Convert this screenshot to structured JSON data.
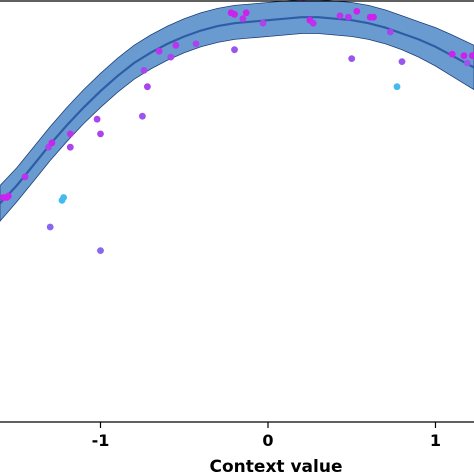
{
  "chart_data": {
    "type": "scatter",
    "title": "",
    "xlabel": "Context value",
    "ylabel": "",
    "xlim": [
      -1.6,
      1.23
    ],
    "ylim": [
      -1.6,
      1.25
    ],
    "grid": false,
    "legend": "none",
    "x_ticks": [
      {
        "value": -1,
        "label": "-1"
      },
      {
        "value": 0,
        "label": "0"
      },
      {
        "value": 1,
        "label": "1"
      }
    ],
    "fit": {
      "name": "",
      "color": "#2e5da6",
      "band_color": "#6a9bd0",
      "x": [
        -1.6,
        -1.5,
        -1.4,
        -1.3,
        -1.2,
        -1.1,
        -1.0,
        -0.9,
        -0.8,
        -0.7,
        -0.6,
        -0.5,
        -0.4,
        -0.3,
        -0.2,
        -0.1,
        0.0,
        0.1,
        0.2,
        0.3,
        0.4,
        0.5,
        0.6,
        0.7,
        0.8,
        0.9,
        1.0,
        1.1,
        1.23
      ],
      "mean": [
        -0.12,
        0.0,
        0.14,
        0.28,
        0.41,
        0.53,
        0.64,
        0.74,
        0.83,
        0.9,
        0.96,
        1.01,
        1.05,
        1.08,
        1.1,
        1.11,
        1.12,
        1.13,
        1.14,
        1.14,
        1.13,
        1.12,
        1.1,
        1.07,
        1.03,
        0.99,
        0.94,
        0.88,
        0.8
      ],
      "lower": [
        -0.24,
        -0.11,
        0.03,
        0.17,
        0.3,
        0.42,
        0.53,
        0.63,
        0.72,
        0.79,
        0.85,
        0.9,
        0.94,
        0.97,
        0.99,
        1.0,
        1.01,
        1.02,
        1.03,
        1.03,
        1.02,
        1.01,
        0.99,
        0.96,
        0.92,
        0.87,
        0.81,
        0.74,
        0.65
      ],
      "upper": [
        0.0,
        0.12,
        0.26,
        0.4,
        0.53,
        0.65,
        0.76,
        0.86,
        0.95,
        1.02,
        1.08,
        1.13,
        1.17,
        1.2,
        1.22,
        1.23,
        1.24,
        1.25,
        1.26,
        1.26,
        1.25,
        1.24,
        1.22,
        1.19,
        1.15,
        1.11,
        1.07,
        1.02,
        0.95
      ]
    },
    "points": [
      {
        "x": -1.58,
        "y": -0.08,
        "color": "#cc22ee"
      },
      {
        "x": -1.56,
        "y": -0.08,
        "color": "#cc22ee"
      },
      {
        "x": -1.55,
        "y": -0.07,
        "color": "#cc22ee"
      },
      {
        "x": -1.45,
        "y": 0.06,
        "color": "#bb33ee"
      },
      {
        "x": -1.31,
        "y": 0.26,
        "color": "#aa44ee"
      },
      {
        "x": -1.29,
        "y": 0.29,
        "color": "#cc22ee"
      },
      {
        "x": -1.3,
        "y": -0.28,
        "color": "#8866ee"
      },
      {
        "x": -1.23,
        "y": -0.1,
        "color": "#44bbee"
      },
      {
        "x": -1.22,
        "y": -0.08,
        "color": "#44bbee"
      },
      {
        "x": -1.18,
        "y": 0.35,
        "color": "#bb33ee"
      },
      {
        "x": -1.18,
        "y": 0.26,
        "color": "#aa44ee"
      },
      {
        "x": -1.02,
        "y": 0.45,
        "color": "#aa44ee"
      },
      {
        "x": -1.0,
        "y": 0.35,
        "color": "#aa44ee"
      },
      {
        "x": -1.0,
        "y": -0.44,
        "color": "#8866ee"
      },
      {
        "x": -0.75,
        "y": 0.47,
        "color": "#9955ee"
      },
      {
        "x": -0.74,
        "y": 0.78,
        "color": "#aa44ee"
      },
      {
        "x": -0.72,
        "y": 0.67,
        "color": "#aa44ee"
      },
      {
        "x": -0.65,
        "y": 0.91,
        "color": "#bb33ee"
      },
      {
        "x": -0.58,
        "y": 0.87,
        "color": "#aa44ee"
      },
      {
        "x": -0.55,
        "y": 0.95,
        "color": "#bb33ee"
      },
      {
        "x": -0.43,
        "y": 0.96,
        "color": "#aa44ee"
      },
      {
        "x": -0.22,
        "y": 1.17,
        "color": "#cc22ee"
      },
      {
        "x": -0.2,
        "y": 1.16,
        "color": "#cc22ee"
      },
      {
        "x": -0.2,
        "y": 0.92,
        "color": "#9955ee"
      },
      {
        "x": -0.15,
        "y": 1.13,
        "color": "#bb33ee"
      },
      {
        "x": -0.13,
        "y": 1.17,
        "color": "#cc22ee"
      },
      {
        "x": -0.03,
        "y": 1.1,
        "color": "#aa44ee"
      },
      {
        "x": 0.21,
        "y": 1.27,
        "color": "#cc22ee"
      },
      {
        "x": 0.25,
        "y": 1.12,
        "color": "#cc22ee"
      },
      {
        "x": 0.27,
        "y": 1.1,
        "color": "#bb33ee"
      },
      {
        "x": 0.43,
        "y": 1.15,
        "color": "#bb33ee"
      },
      {
        "x": 0.48,
        "y": 1.14,
        "color": "#bb33ee"
      },
      {
        "x": 0.5,
        "y": 0.86,
        "color": "#9955ee"
      },
      {
        "x": 0.53,
        "y": 1.18,
        "color": "#cc22ee"
      },
      {
        "x": 0.61,
        "y": 1.14,
        "color": "#cc22ee"
      },
      {
        "x": 0.63,
        "y": 1.14,
        "color": "#cc22ee"
      },
      {
        "x": 0.73,
        "y": 1.04,
        "color": "#aa44ee"
      },
      {
        "x": 0.77,
        "y": 0.67,
        "color": "#44bbee"
      },
      {
        "x": 0.8,
        "y": 0.84,
        "color": "#9955ee"
      },
      {
        "x": 1.1,
        "y": 0.89,
        "color": "#cc22ee"
      },
      {
        "x": 1.17,
        "y": 0.88,
        "color": "#cc22ee"
      },
      {
        "x": 1.19,
        "y": 0.83,
        "color": "#9955ee"
      },
      {
        "x": 1.22,
        "y": 0.88,
        "color": "#cc22ee"
      }
    ]
  }
}
